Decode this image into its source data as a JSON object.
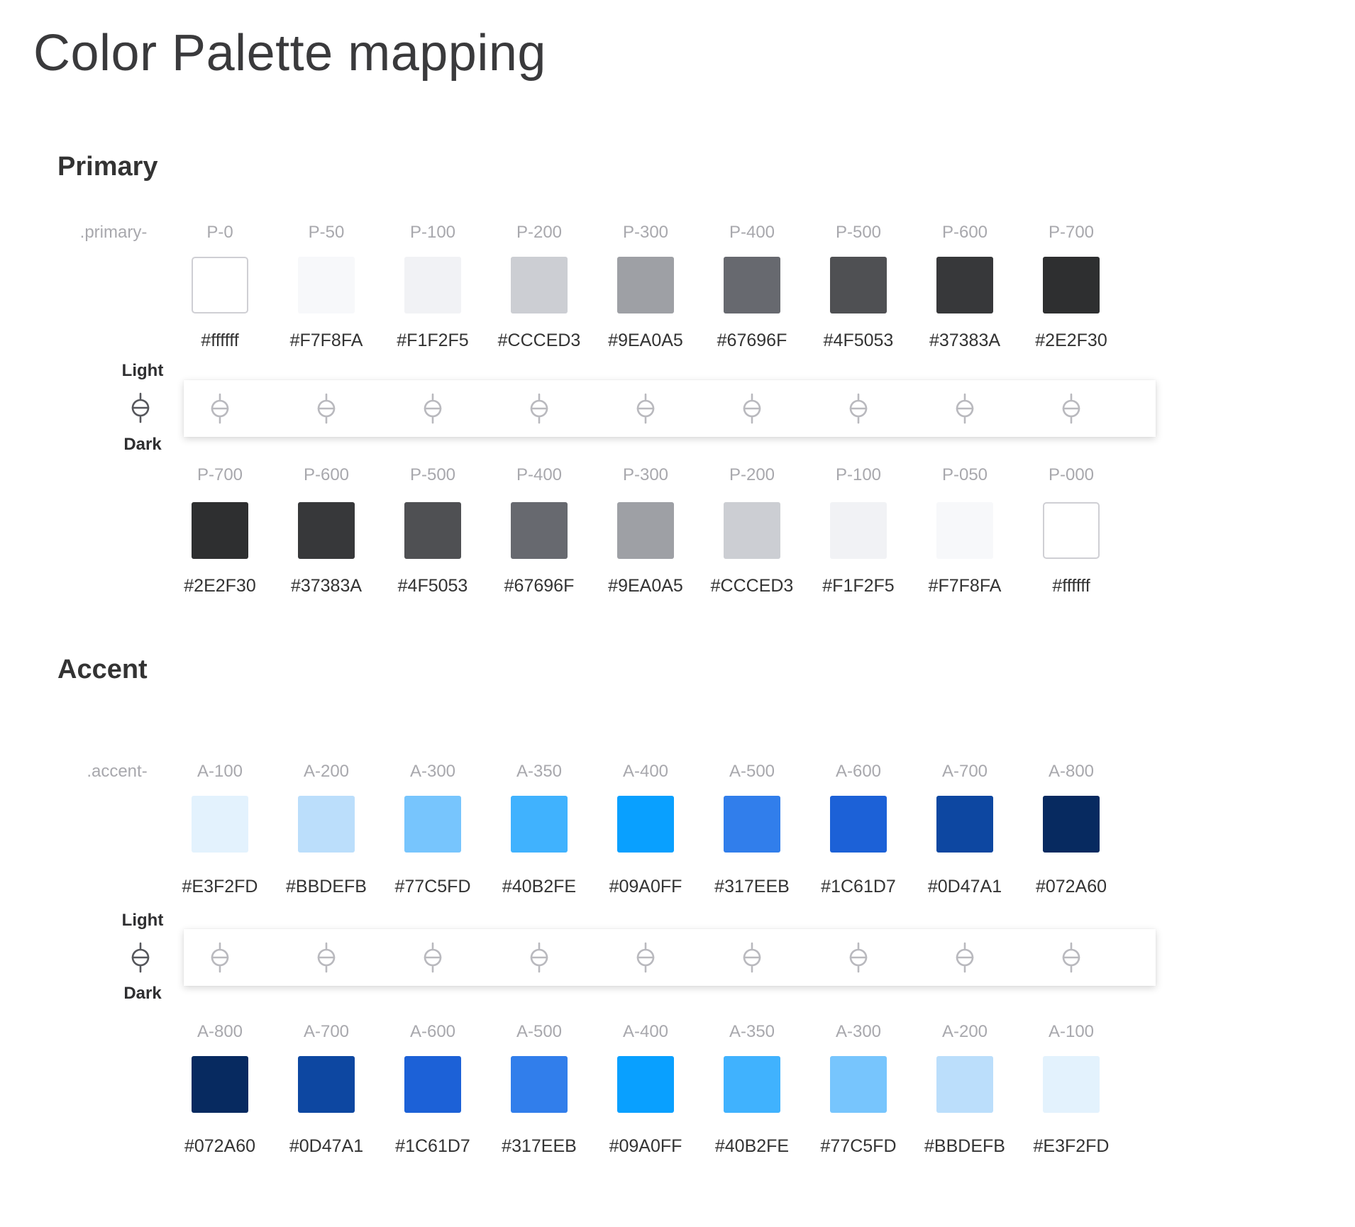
{
  "title": "Color Palette mapping",
  "sections": {
    "primary": {
      "title": "Primary",
      "prefix": ".primary-",
      "light_label": "Light",
      "dark_label": "Dark",
      "top": [
        {
          "label": "P-0",
          "hex": "#ffffff",
          "color": "#ffffff",
          "outlined": true
        },
        {
          "label": "P-50",
          "hex": "#F7F8FA",
          "color": "#F7F8FA"
        },
        {
          "label": "P-100",
          "hex": "#F1F2F5",
          "color": "#F1F2F5"
        },
        {
          "label": "P-200",
          "hex": "#CCCED3",
          "color": "#CCCED3"
        },
        {
          "label": "P-300",
          "hex": "#9EA0A5",
          "color": "#9EA0A5"
        },
        {
          "label": "P-400",
          "hex": "#67696F",
          "color": "#67696F"
        },
        {
          "label": "P-500",
          "hex": "#4F5053",
          "color": "#4F5053"
        },
        {
          "label": "P-600",
          "hex": "#37383A",
          "color": "#37383A"
        },
        {
          "label": "P-700",
          "hex": "#2E2F30",
          "color": "#2E2F30"
        }
      ],
      "bottom": [
        {
          "label": "P-700",
          "hex": "#2E2F30",
          "color": "#2E2F30"
        },
        {
          "label": "P-600",
          "hex": "#37383A",
          "color": "#37383A"
        },
        {
          "label": "P-500",
          "hex": "#4F5053",
          "color": "#4F5053"
        },
        {
          "label": "P-400",
          "hex": "#67696F",
          "color": "#67696F"
        },
        {
          "label": "P-300",
          "hex": "#9EA0A5",
          "color": "#9EA0A5"
        },
        {
          "label": "P-200",
          "hex": "#CCCED3",
          "color": "#CCCED3"
        },
        {
          "label": "P-100",
          "hex": "#F1F2F5",
          "color": "#F1F2F5"
        },
        {
          "label": "P-050",
          "hex": "#F7F8FA",
          "color": "#F7F8FA"
        },
        {
          "label": "P-000",
          "hex": "#ffffff",
          "color": "#ffffff",
          "outlined": true
        }
      ]
    },
    "accent": {
      "title": "Accent",
      "prefix": ".accent-",
      "light_label": "Light",
      "dark_label": "Dark",
      "top": [
        {
          "label": "A-100",
          "hex": "#E3F2FD",
          "color": "#E3F2FD"
        },
        {
          "label": "A-200",
          "hex": "#BBDEFB",
          "color": "#BBDEFB"
        },
        {
          "label": "A-300",
          "hex": "#77C5FD",
          "color": "#77C5FD"
        },
        {
          "label": "A-350",
          "hex": "#40B2FE",
          "color": "#40B2FE"
        },
        {
          "label": "A-400",
          "hex": "#09A0FF",
          "color": "#09A0FF"
        },
        {
          "label": "A-500",
          "hex": "#317EEB",
          "color": "#317EEB"
        },
        {
          "label": "A-600",
          "hex": "#1C61D7",
          "color": "#1C61D7"
        },
        {
          "label": "A-700",
          "hex": "#0D47A1",
          "color": "#0D47A1"
        },
        {
          "label": "A-800",
          "hex": "#072A60",
          "color": "#072A60"
        }
      ],
      "bottom": [
        {
          "label": "A-800",
          "hex": "#072A60",
          "color": "#072A60"
        },
        {
          "label": "A-700",
          "hex": "#0D47A1",
          "color": "#0D47A1"
        },
        {
          "label": "A-600",
          "hex": "#1C61D7",
          "color": "#1C61D7"
        },
        {
          "label": "A-500",
          "hex": "#317EEB",
          "color": "#317EEB"
        },
        {
          "label": "A-400",
          "hex": "#09A0FF",
          "color": "#09A0FF"
        },
        {
          "label": "A-350",
          "hex": "#40B2FE",
          "color": "#40B2FE"
        },
        {
          "label": "A-300",
          "hex": "#77C5FD",
          "color": "#77C5FD"
        },
        {
          "label": "A-200",
          "hex": "#BBDEFB",
          "color": "#BBDEFB"
        },
        {
          "label": "A-100",
          "hex": "#E3F2FD",
          "color": "#E3F2FD"
        }
      ]
    }
  }
}
